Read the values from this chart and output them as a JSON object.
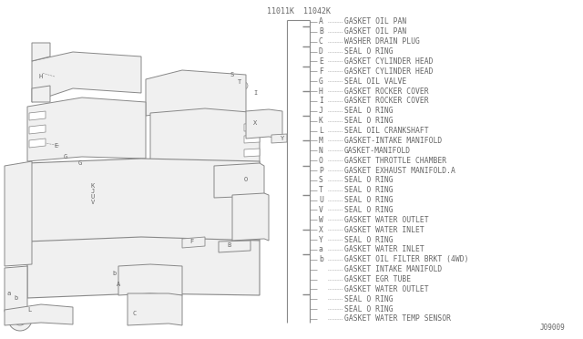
{
  "bg_color": "#ffffff",
  "part_numbers": [
    "11011K",
    "11042K"
  ],
  "legend_items": [
    [
      "A",
      "GASKET OIL PAN"
    ],
    [
      "B",
      "GASKET OIL PAN"
    ],
    [
      "C",
      "WASHER DRAIN PLUG"
    ],
    [
      "D",
      "SEAL O RING"
    ],
    [
      "E",
      "GASKET CYLINDER HEAD"
    ],
    [
      "F",
      "GASKET CYLINDER HEAD"
    ],
    [
      "G",
      "SEAL OIL VALVE"
    ],
    [
      "H",
      "GASKET ROCKER COVER"
    ],
    [
      "I",
      "GASKET ROCKER COVER"
    ],
    [
      "J",
      "SEAL O RING"
    ],
    [
      "K",
      "SEAL O RING"
    ],
    [
      "L",
      "SEAL OIL CRANKSHAFT"
    ],
    [
      "M",
      "GASKET-INTAKE MANIFOLD"
    ],
    [
      "N",
      "GASKET-MANIFOLD"
    ],
    [
      "O",
      "GASKET THROTTLE CHAMBER"
    ],
    [
      "P",
      "GASKET EXHAUST MANIFOLD.A"
    ],
    [
      "S",
      "SEAL O RING"
    ],
    [
      "T",
      "SEAL O RING"
    ],
    [
      "U",
      "SEAL O RING"
    ],
    [
      "V",
      "SEAL O RING"
    ],
    [
      "W",
      "GASKET WATER OUTLET"
    ],
    [
      "X",
      "GASKET WATER INLET"
    ],
    [
      "Y",
      "SEAL O RING"
    ],
    [
      "a",
      "GASKET WATER INLET"
    ],
    [
      "b",
      "GASKET OIL FILTER BRKT (4WD)"
    ],
    [
      "",
      "GASKET INTAKE MANIFOLD"
    ],
    [
      "",
      "GASKET EGR TUBE"
    ],
    [
      "",
      "GASKET WATER OUTLET"
    ],
    [
      "",
      "SEAL O RING"
    ],
    [
      "",
      "SEAL O RING"
    ],
    [
      "",
      "GASKET WATER TEMP SENSOR"
    ]
  ],
  "bracket_ticks": [
    0,
    1,
    2,
    3,
    4,
    5,
    6,
    7,
    8,
    9,
    10,
    11,
    12,
    13,
    14,
    15,
    16,
    17,
    18,
    19,
    20,
    21,
    22,
    23,
    24
  ],
  "bracket_groups": [
    [
      0,
      1
    ],
    [
      2,
      3
    ],
    [
      4,
      5
    ],
    [
      6,
      7,
      8
    ],
    [
      9,
      10
    ],
    [
      11,
      12,
      13
    ],
    [
      14,
      15
    ],
    [
      16,
      17,
      18,
      19
    ],
    [
      20,
      21,
      22
    ],
    [
      23,
      24
    ],
    [
      25,
      26,
      27,
      28,
      29,
      30
    ]
  ],
  "footer": "J09009",
  "font_color": "#666666",
  "line_color": "#888888",
  "text_font_size": 5.8,
  "mono_font": "monospace"
}
